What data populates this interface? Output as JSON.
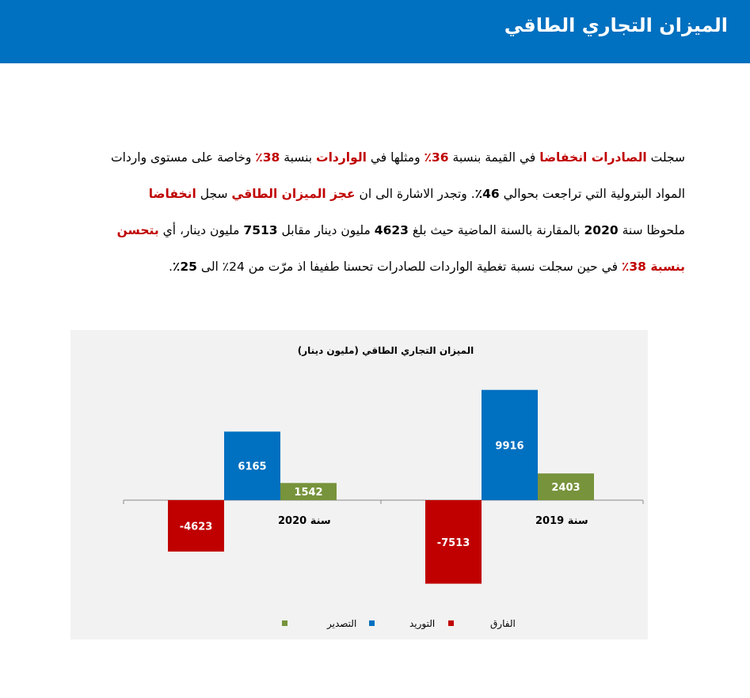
{
  "header": {
    "title": "الميزان التجاري الطاقي",
    "color": "#0070c0"
  },
  "paragraph": {
    "line1": {
      "t1": "سجلت ",
      "t2": "الصادرات انخفاضا",
      "t3": " في القيمة بنسبة ",
      "t4": "36٪",
      "t5": " ومثلها في ",
      "t6": "الواردات",
      "t7": " بنسبة ",
      "t8": "38٪",
      "t9": " وخاصة على مستوى واردات"
    },
    "line2": {
      "t1": "المواد البترولية التي تراجعت بحوالي ",
      "t2": "46٪",
      "t3": ". وتجدر الاشارة الى ان ",
      "t4": "عجز الميزان الطاقي",
      "t5": " سجل ",
      "t6": "انخفاضا"
    },
    "line3": {
      "t1": "ملحوظا سنة ",
      "t2": "2020",
      "t3": " بالمقارنة بالسنة الماضية حيث بلغ ",
      "t4": "4623",
      "t5": " مليون دينار مقابل ",
      "t6": "7513",
      "t7": " مليون دينار، أي ",
      "t8": "بتحسن"
    },
    "line4": {
      "t1": "بنسبة 38٪",
      "t2": " في حين سجلت نسبة تغطية الواردات للصادرات تحسنا طفيفا اذ مرّت من 24٪ الى ",
      "t3": "25٪",
      "t4": "."
    }
  },
  "chart_data": {
    "type": "bar",
    "title": "الميزان التجاري الطاقي (مليون دينار)",
    "categories": [
      "سنة 2020",
      "سنة 2019"
    ],
    "series": [
      {
        "name": "الفارق",
        "values": [
          -4623,
          -7513
        ],
        "color": "#c00000"
      },
      {
        "name": "التوريد",
        "values": [
          6165,
          9916
        ],
        "color": "#0070c0"
      },
      {
        "name": "التصدير",
        "values": [
          1542,
          2403
        ],
        "color": "#77933c"
      }
    ],
    "ylim": [
      -8400,
      11500
    ],
    "legend_position": "bottom",
    "grid": false
  }
}
